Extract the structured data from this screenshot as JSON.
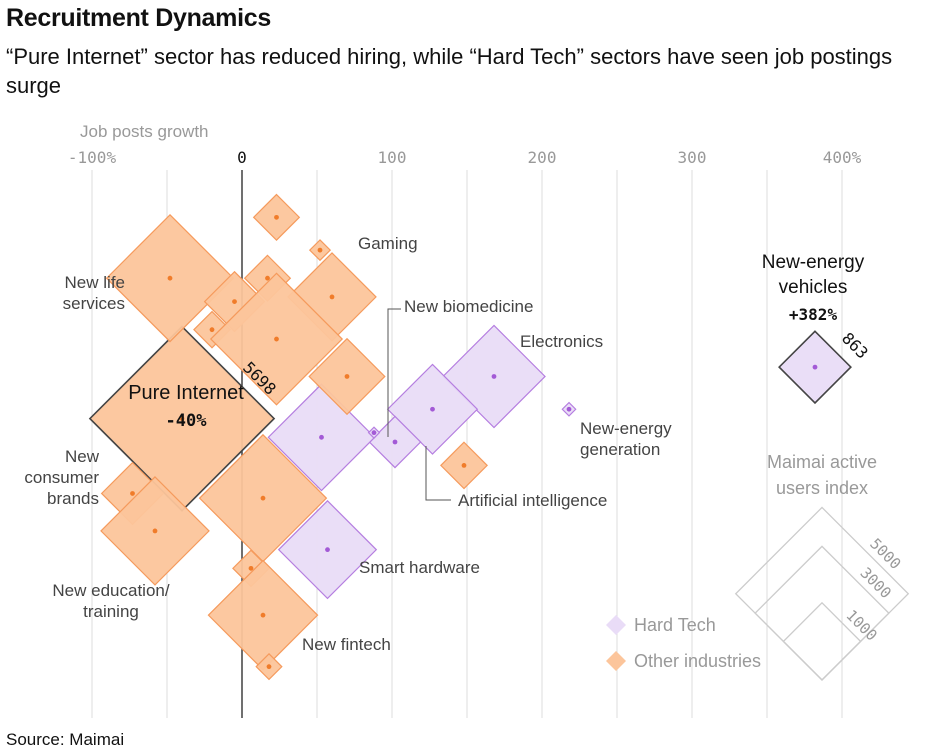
{
  "title": "Recruitment Dynamics",
  "subtitle": "“Pure Internet” sector has reduced hiring, while “Hard Tech” sectors have seen job postings surge",
  "source": "Source: Maimai",
  "colors": {
    "hard_tech_fill": "#e9dcf7",
    "hard_tech_stroke": "#b57ee0",
    "hard_tech_dot": "#a35ad6",
    "other_fill": "#fcc59b",
    "other_stroke": "#f59a5c",
    "other_dot": "#f07c2a",
    "grid": "#dddddd",
    "axis_zero": "#333333",
    "muted_text": "#999999",
    "dark_stroke": "#444444"
  },
  "chart_data": {
    "type": "scatter",
    "x_label": "Job posts growth",
    "x_range": [
      -100,
      420
    ],
    "ticks": [
      {
        "value": -100,
        "label": "-100%"
      },
      {
        "value": -50,
        "label": ""
      },
      {
        "value": 0,
        "label": "0"
      },
      {
        "value": 50,
        "label": ""
      },
      {
        "value": 100,
        "label": "100"
      },
      {
        "value": 150,
        "label": ""
      },
      {
        "value": 200,
        "label": "200"
      },
      {
        "value": 250,
        "label": ""
      },
      {
        "value": 300,
        "label": "300"
      },
      {
        "value": 350,
        "label": ""
      },
      {
        "value": 400,
        "label": "400%"
      }
    ],
    "size_note": "Diamond area proportional to Maimai active users index",
    "series": [
      {
        "name": "Hard Tech",
        "category": "hard",
        "points": [
          {
            "label": "New-energy vehicles",
            "growth": 382,
            "users": 863,
            "row": 0.34
          },
          {
            "label": "Electronics",
            "growth": 168,
            "users": 1750,
            "row": 0.36
          },
          {
            "label": "Artificial intelligence",
            "growth": 127,
            "users": 1350,
            "row": 0.43
          },
          {
            "label": "New biomedicine",
            "growth": 102,
            "users": 440,
            "row": 0.5
          },
          {
            "label": "Smart hardware",
            "growth": 57,
            "users": 1600,
            "row": 0.73
          },
          {
            "label": "",
            "growth": 53,
            "users": 1900,
            "row": 0.49
          },
          {
            "label": "New-energy generation",
            "growth": 218,
            "users": 30,
            "row": 0.43
          },
          {
            "label": "",
            "growth": 88,
            "users": 20,
            "row": 0.48
          }
        ]
      },
      {
        "name": "Other industries",
        "category": "other",
        "points": [
          {
            "label": "Pure Internet",
            "growth": -40,
            "users": 5698,
            "row": 0.45
          },
          {
            "label": "",
            "growth": 23,
            "users": 350,
            "row": 0.02
          },
          {
            "label": "",
            "growth": 52,
            "users": 70,
            "row": 0.09
          },
          {
            "label": "New life services",
            "growth": -48,
            "users": 2700,
            "row": 0.15
          },
          {
            "label": "",
            "growth": 17,
            "users": 350,
            "row": 0.15
          },
          {
            "label": "Gaming",
            "growth": 60,
            "users": 1300,
            "row": 0.19
          },
          {
            "label": "",
            "growth": -5,
            "users": 600,
            "row": 0.2
          },
          {
            "label": "",
            "growth": -20,
            "users": 220,
            "row": 0.26
          },
          {
            "label": "",
            "growth": 23,
            "users": 2900,
            "row": 0.28
          },
          {
            "label": "",
            "growth": 70,
            "users": 960,
            "row": 0.36
          },
          {
            "label": "",
            "growth": 148,
            "users": 360,
            "row": 0.55
          },
          {
            "label": "",
            "growth": 14,
            "users": 2700,
            "row": 0.62
          },
          {
            "label": "New consumer brands",
            "growth": -73,
            "users": 640,
            "row": 0.61
          },
          {
            "label": "New education/ training",
            "growth": -58,
            "users": 1960,
            "row": 0.69
          },
          {
            "label": "",
            "growth": 6,
            "users": 220,
            "row": 0.77
          },
          {
            "label": "New fintech",
            "growth": 14,
            "users": 2000,
            "row": 0.87
          },
          {
            "label": "",
            "growth": 18,
            "users": 110,
            "row": 0.98
          }
        ]
      }
    ],
    "callouts": [
      {
        "key": "pure_internet",
        "name": "Pure Internet",
        "value_label": "-40%",
        "size_label": "5698"
      },
      {
        "key": "nev",
        "name_line1": "New-energy",
        "name_line2": "vehicles",
        "value_label": "+382%",
        "size_label": "863"
      }
    ],
    "legend": [
      {
        "label": "Hard Tech",
        "category": "hard"
      },
      {
        "label": "Other industries",
        "category": "other"
      }
    ],
    "size_legend": {
      "title_line1": "Maimai active",
      "title_line2": "users index",
      "values": [
        5000,
        3000,
        1000
      ]
    }
  },
  "labels": {
    "new_life_services": [
      "New life",
      "services"
    ],
    "gaming": "Gaming",
    "new_biomedicine": "New biomedicine",
    "electronics": "Electronics",
    "new_energy_generation": [
      "New-energy",
      "generation"
    ],
    "artificial_intelligence": "Artificial intelligence",
    "new_consumer_brands": [
      "New",
      "consumer",
      "brands"
    ],
    "smart_hardware": "Smart hardware",
    "new_education_training": [
      "New education/",
      "training"
    ],
    "new_fintech": "New fintech"
  }
}
